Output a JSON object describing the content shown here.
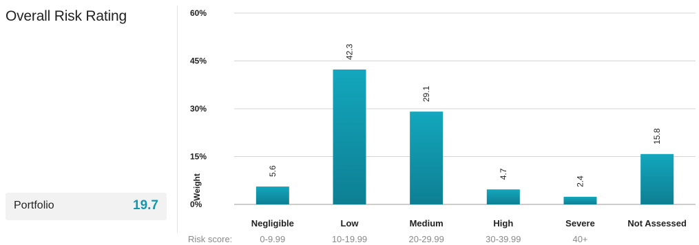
{
  "panel": {
    "title": "Overall Risk Rating",
    "portfolio_label": "Portfolio",
    "portfolio_value": "19.7"
  },
  "colors": {
    "bar_top": "#13a7bd",
    "bar_bottom": "#0e7f93",
    "accent": "#1497ad",
    "grid": "#d4d4d4"
  },
  "chart_data": {
    "type": "bar",
    "title": "",
    "xlabel": "",
    "ylabel": "Weight",
    "ylim": [
      0,
      60
    ],
    "yticks": [
      0,
      15,
      30,
      45,
      60
    ],
    "ytick_labels": [
      "0%",
      "15%",
      "30%",
      "45%",
      "60%"
    ],
    "grid": true,
    "categories": [
      "Negligible",
      "Low",
      "Medium",
      "High",
      "Severe",
      "Not Assessed"
    ],
    "values": [
      5.6,
      42.3,
      29.1,
      4.7,
      2.4,
      15.8
    ],
    "data_labels": [
      "5.6",
      "42.3",
      "29.1",
      "4.7",
      "2.4",
      "15.8"
    ],
    "risk_score_label": "Risk score:",
    "risk_score_ranges": [
      "0-9.99",
      "10-19.99",
      "20-29.99",
      "30-39.99",
      "40+",
      ""
    ]
  }
}
